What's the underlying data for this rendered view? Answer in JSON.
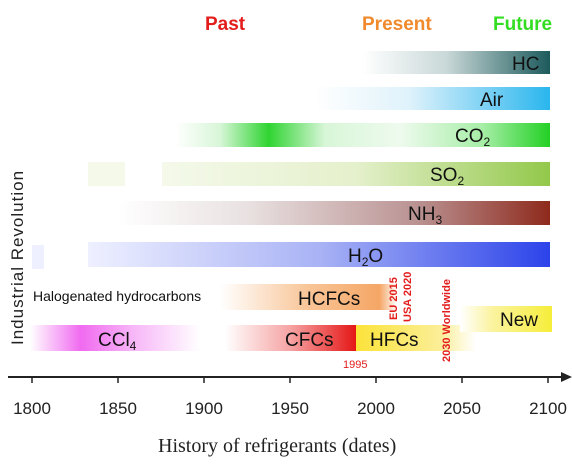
{
  "eras": {
    "past": {
      "label": "Past",
      "color": "#e31c1c"
    },
    "present": {
      "label": "Present",
      "color": "#f08a2c"
    },
    "future": {
      "label": "Future",
      "color": "#33dd22"
    }
  },
  "side_label": "Industrial Revolution",
  "axis": {
    "title": "History of refrigerants (dates)",
    "ticks": [
      "1800",
      "1850",
      "1900",
      "1950",
      "2000",
      "2050",
      "2100"
    ]
  },
  "group_label": "Halogenated hydrocarbons",
  "bars": [
    {
      "id": "hc",
      "label": "HC",
      "sub": ""
    },
    {
      "id": "air",
      "label": "Air",
      "sub": ""
    },
    {
      "id": "co2",
      "label": "CO",
      "sub": "2"
    },
    {
      "id": "so2",
      "label": "SO",
      "sub": "2"
    },
    {
      "id": "nh3",
      "label": "NH",
      "sub": "3"
    },
    {
      "id": "h2o",
      "label": "H",
      "sub": "2",
      "suffix": "O"
    },
    {
      "id": "hcfcs",
      "label": "HCFCs",
      "sub": ""
    },
    {
      "id": "ccl4",
      "label": "CCl",
      "sub": "4"
    },
    {
      "id": "cfcs",
      "label": "CFCs",
      "sub": ""
    },
    {
      "id": "hfcs",
      "label": "HFCs",
      "sub": ""
    },
    {
      "id": "new",
      "label": "New",
      "sub": ""
    }
  ],
  "annotations": {
    "eu": "EU 2015",
    "usa": "USA 2020",
    "worldwide": "2030 Worldwide",
    "year_1995": "1995"
  }
}
